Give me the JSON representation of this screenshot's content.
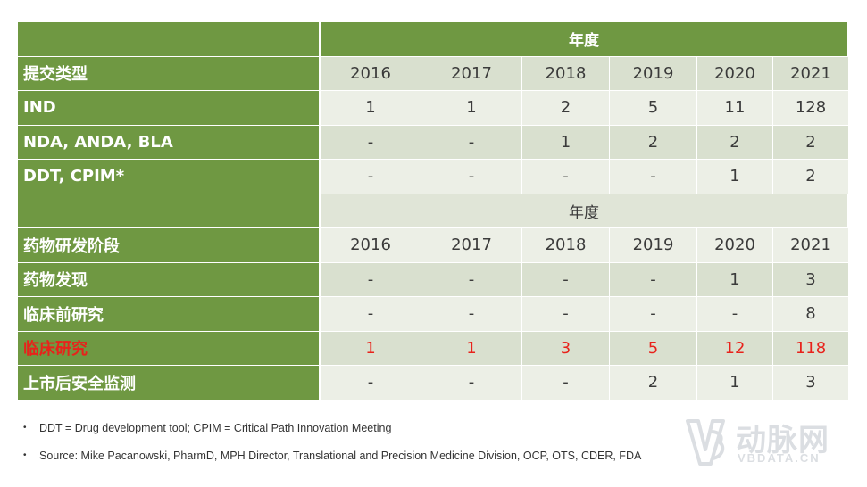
{
  "table": {
    "top_header": "年度",
    "section1": {
      "label": "提交类型",
      "years": [
        "2016",
        "2017",
        "2018",
        "2019",
        "2020",
        "2021"
      ],
      "rows": [
        {
          "label": "IND",
          "values": [
            "1",
            "1",
            "2",
            "5",
            "11",
            "128"
          ]
        },
        {
          "label": "NDA, ANDA, BLA",
          "values": [
            "-",
            "-",
            "1",
            "2",
            "2",
            "2"
          ]
        },
        {
          "label": "DDT, CPIM*",
          "values": [
            "-",
            "-",
            "-",
            "-",
            "1",
            "2"
          ]
        }
      ]
    },
    "mid_header": "年度",
    "section2": {
      "label": "药物研发阶段",
      "years": [
        "2016",
        "2017",
        "2018",
        "2019",
        "2020",
        "2021"
      ],
      "rows": [
        {
          "label": "药物发现",
          "values": [
            "-",
            "-",
            "-",
            "-",
            "1",
            "3"
          ]
        },
        {
          "label": "临床前研究",
          "values": [
            "-",
            "-",
            "-",
            "-",
            "-",
            "8"
          ]
        },
        {
          "label": "临床研究",
          "values": [
            "1",
            "1",
            "3",
            "5",
            "12",
            "118"
          ],
          "highlight_color": "#e8221b"
        },
        {
          "label": "上市后安全监测",
          "values": [
            "-",
            "-",
            "-",
            "2",
            "1",
            "3"
          ]
        }
      ]
    }
  },
  "footnotes": [
    "DDT = Drug development tool;  CPIM = Critical Path Innovation Meeting",
    "Source: Mike Pacanowski, PharmD, MPH Director, Translational and Precision Medicine Division, OCP, OTS, CDER, FDA"
  ],
  "watermark": {
    "name_cn": "动脉网",
    "name_en": "VBDATA.CN",
    "logo_icon": "vb-logo-icon"
  },
  "colors": {
    "green": "#6f9842",
    "band_dark": "#d9e0cf",
    "band_light": "#ecefe6",
    "highlight": "#e8221b"
  }
}
